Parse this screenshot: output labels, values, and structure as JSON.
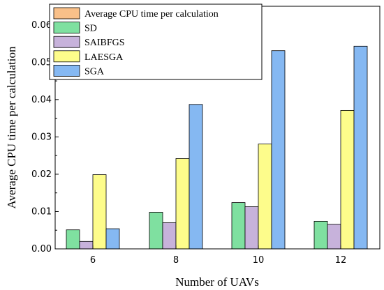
{
  "chart_data": {
    "type": "bar",
    "categories": [
      "6",
      "8",
      "10",
      "12"
    ],
    "xlabel": "Number of UAVs",
    "ylabel": "Average CPU time per calculation",
    "ylim": [
      0,
      0.065
    ],
    "yticks": [
      "0.00",
      "0.01",
      "0.02",
      "0.03",
      "0.04",
      "0.05",
      "0.06"
    ],
    "legend_title": "Average CPU time per calculation",
    "legend_placement": "top-left",
    "grid": false,
    "series": [
      {
        "name": "SD",
        "color": "#7fe0a0",
        "values": [
          0.0051,
          0.0098,
          0.0124,
          0.0074
        ]
      },
      {
        "name": "SAIBFGS",
        "color": "#c7b2db",
        "values": [
          0.002,
          0.007,
          0.0113,
          0.0066
        ]
      },
      {
        "name": "LAESGA",
        "color": "#fdfc8b",
        "values": [
          0.0199,
          0.0242,
          0.0281,
          0.0371
        ]
      },
      {
        "name": "SGA",
        "color": "#85b8f2",
        "values": [
          0.0054,
          0.0387,
          0.0531,
          0.0543
        ]
      }
    ],
    "legend_title_color": "#f9c089"
  }
}
